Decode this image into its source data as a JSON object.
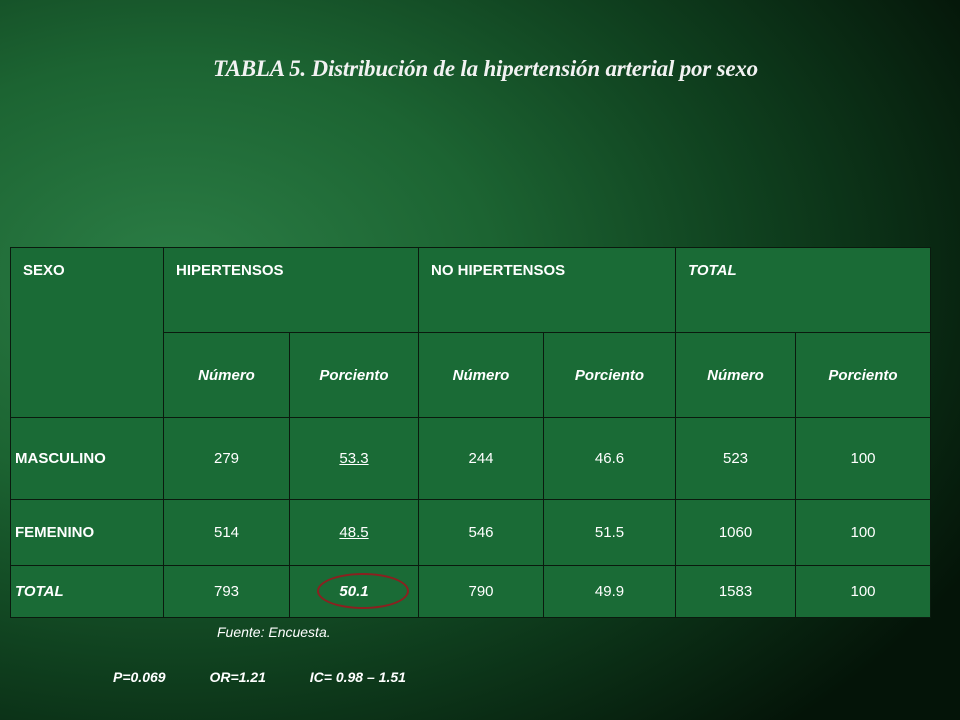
{
  "title": "TABLA 5. Distribución de la hipertensión arterial por sexo",
  "table": {
    "header": {
      "sexo": "SEXO",
      "hipertensos": "HIPERTENSOS",
      "no_hipertensos": "NO HIPERTENSOS",
      "total": "TOTAL"
    },
    "subheaders": [
      "Número",
      "Porciento",
      "Número",
      "Porciento",
      "Número",
      "Porciento"
    ],
    "rows": [
      {
        "label": "MASCULINO",
        "cells": [
          "279",
          "53.3",
          "244",
          "46.6",
          "523",
          "100"
        ]
      },
      {
        "label": "FEMENINO",
        "cells": [
          "514",
          "48.5",
          "546",
          "51.5",
          "1060",
          "100"
        ]
      },
      {
        "label": "TOTAL",
        "cells": [
          "793",
          "50.1",
          "790",
          "49.9",
          "1583",
          "100"
        ]
      }
    ]
  },
  "source": "Fuente: Encuesta.",
  "stats": {
    "p": "P=0.069",
    "or": "OR=1.21",
    "ic": "IC= 0.98 – 1.51"
  },
  "colors": {
    "table_fill": "#1a6b36",
    "circle_annotation": "#8b2020"
  }
}
